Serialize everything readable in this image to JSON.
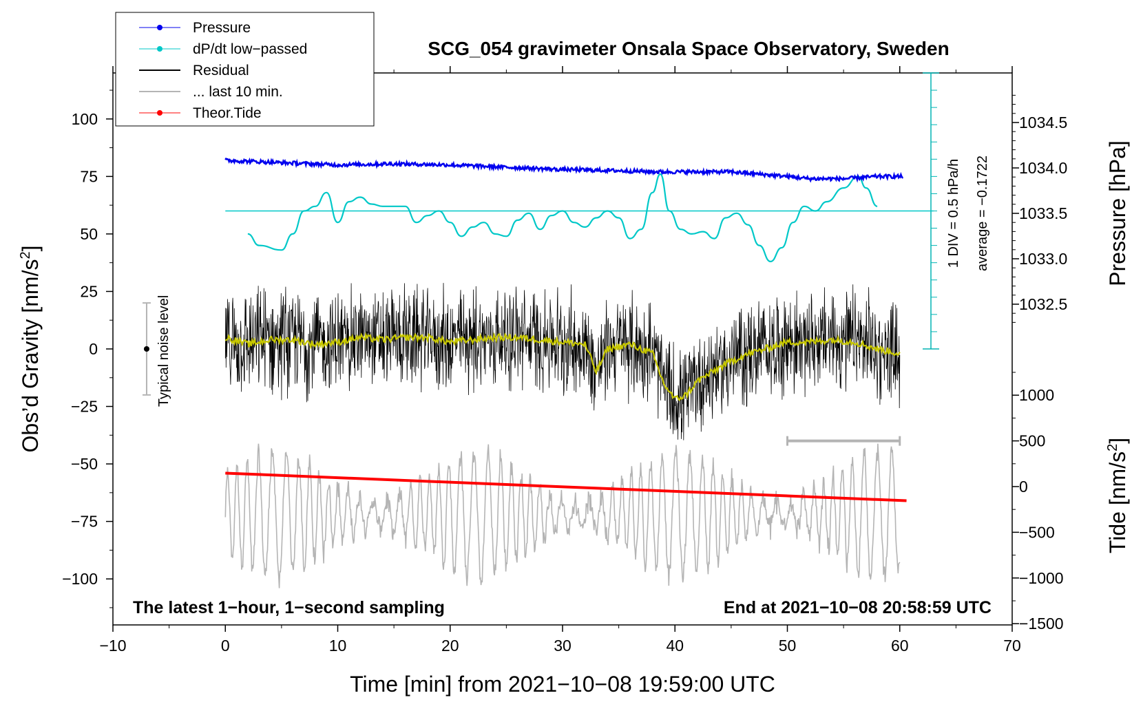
{
  "chart_data": {
    "type": "line",
    "title": "SCG_054 gravimeter Onsala Space Observatory, Sweden",
    "xlabel": "Time [min] from 2021−10−08 19:59:00 UTC",
    "ylabel_left_main": "Obs’d Gravity [nm/s",
    "ylabel_left_sup": "2",
    "ylabel_left_end": "]",
    "ylabel_right_pressure": "Pressure [hPa]",
    "ylabel_right_tide_main": "Tide [nm/s",
    "ylabel_right_tide_sup": "2",
    "ylabel_right_tide_end": "]",
    "xlim": [
      -10,
      70
    ],
    "ylim": [
      -120,
      120
    ],
    "x_ticks": [
      "−10",
      "0",
      "10",
      "20",
      "30",
      "40",
      "50",
      "60",
      "70"
    ],
    "x_tick_values": [
      -10,
      0,
      10,
      20,
      30,
      40,
      50,
      60,
      70
    ],
    "y_ticks": [
      "100",
      "75",
      "50",
      "25",
      "0",
      "−25",
      "−50",
      "−75",
      "−100"
    ],
    "y_tick_values": [
      100,
      75,
      50,
      25,
      0,
      -25,
      -50,
      -75,
      -100
    ],
    "pressure_ticks": [
      "1034.5",
      "1034.0",
      "1033.5",
      "1033.0",
      "1032.5"
    ],
    "pressure_tick_values": [
      1034.5,
      1034.0,
      1033.5,
      1033.0,
      1032.5
    ],
    "tide_ticks": [
      "1000",
      "500",
      "0",
      "−500",
      "−1000",
      "−1500"
    ],
    "tide_tick_values": [
      1000,
      500,
      0,
      -500,
      -1000,
      -1500
    ],
    "legend": [
      {
        "label": "Pressure",
        "color": "#0000ee",
        "style": "line-dot"
      },
      {
        "label": "dP/dt low−passed",
        "color": "#00c8c8",
        "style": "line-dot"
      },
      {
        "label": "Residual",
        "color": "#000000",
        "style": "line"
      },
      {
        "label": "... last 10 min.",
        "color": "#b4b4b4",
        "style": "line"
      },
      {
        "label": "Theor.Tide",
        "color": "#ff0000",
        "style": "line-dot"
      }
    ],
    "annotations": {
      "bottom_left": "The latest 1−hour, 1−second sampling",
      "bottom_right": "End at 2021−10−08 20:58:59 UTC",
      "noise_label": "Typical noise level",
      "dpdt_scale": "1 DIV = 0.5 hPa/h",
      "dpdt_average": "average = −0.1722"
    },
    "noise_bar": {
      "x": -7,
      "y_center": 0,
      "half_range": 20
    },
    "last10_bar": {
      "x_start": 50,
      "x_end": 60,
      "y": -40
    },
    "series": [
      {
        "name": "Pressure",
        "color": "#0000ee",
        "x": [
          0,
          5,
          10,
          15,
          20,
          25,
          30,
          35,
          38.5,
          40,
          45,
          50,
          52,
          55,
          58,
          60.3
        ],
        "y": [
          82,
          81,
          80,
          80.5,
          80,
          79,
          78,
          77.5,
          77,
          77,
          77,
          75,
          74,
          74,
          75,
          75
        ]
      },
      {
        "name": "dP/dt low−passed",
        "color": "#00c8c8",
        "x": [
          2,
          3,
          5,
          6,
          7,
          8,
          9,
          10,
          11,
          12,
          13,
          14,
          16,
          17,
          18,
          19,
          20,
          21,
          22,
          23,
          24,
          25,
          26,
          27,
          28,
          29,
          30,
          31,
          32,
          33,
          34,
          35,
          36,
          37,
          38,
          38.7,
          39.5,
          40.5,
          41.5,
          42.5,
          43.5,
          44.5,
          45.5,
          46.5,
          47.5,
          48.5,
          49.5,
          50.5,
          51.5,
          52.5,
          53.5,
          55,
          56.3,
          57,
          58
        ],
        "y": [
          50,
          45,
          43,
          50,
          60,
          62,
          68,
          55,
          64,
          66,
          63,
          62,
          62,
          55,
          58,
          60,
          55,
          49,
          53,
          55,
          50,
          49,
          56,
          59,
          52,
          58,
          60,
          55,
          53,
          57,
          60,
          57,
          48,
          52,
          68,
          76,
          60,
          52,
          50,
          51,
          48,
          57,
          59,
          54,
          45,
          38,
          44,
          55,
          62,
          60,
          64,
          70,
          75,
          70,
          62
        ]
      },
      {
        "name": "Theor.Tide",
        "color": "#ff0000",
        "x": [
          0,
          60.6
        ],
        "y": [
          -54,
          -66
        ]
      },
      {
        "name": "Residual (smoothed)",
        "color": "#c8c800",
        "x": [
          0,
          2,
          4,
          6,
          8,
          10,
          12,
          14,
          16,
          18,
          20,
          22,
          24,
          26,
          28,
          30,
          32,
          33,
          34,
          36,
          38,
          39,
          40,
          41,
          42,
          44,
          46,
          48,
          50,
          52,
          54,
          56,
          58,
          60
        ],
        "y": [
          5,
          2,
          4,
          4,
          2,
          3,
          5,
          4,
          5,
          5,
          3,
          4,
          5,
          5,
          4,
          3,
          2,
          -10,
          0,
          2,
          -2,
          -15,
          -22,
          -20,
          -14,
          -8,
          -3,
          0,
          3,
          3,
          4,
          3,
          0,
          -2
        ]
      }
    ]
  }
}
